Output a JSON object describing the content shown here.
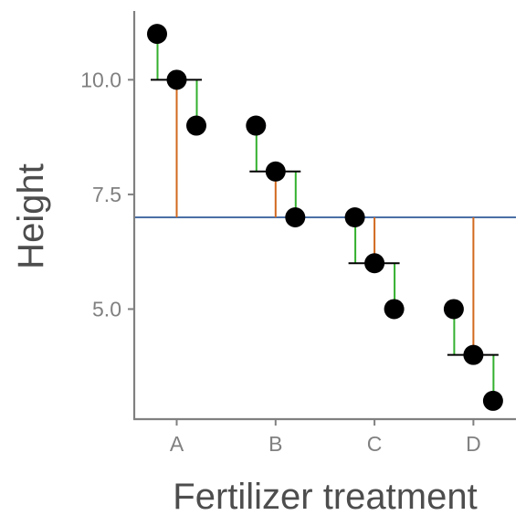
{
  "chart_data": {
    "type": "scatter",
    "xlabel": "Fertilizer treatment",
    "ylabel": "Height",
    "categories": [
      "A",
      "B",
      "C",
      "D"
    ],
    "y_ticks": [
      {
        "value": 5,
        "label": "5.0"
      },
      {
        "value": 7.5,
        "label": "7.5"
      },
      {
        "value": 10,
        "label": "10.0"
      }
    ],
    "ylim": [
      2.6,
      11.5
    ],
    "grand_mean": 7,
    "groups": [
      {
        "category": "A",
        "mean": 10,
        "values": [
          11,
          10,
          9
        ]
      },
      {
        "category": "B",
        "mean": 8,
        "values": [
          9,
          8,
          7
        ]
      },
      {
        "category": "C",
        "mean": 6,
        "values": [
          7,
          6,
          5
        ]
      },
      {
        "category": "D",
        "mean": 4,
        "values": [
          5,
          4,
          3
        ]
      }
    ],
    "grid": false,
    "colors": {
      "points": "#000000",
      "residual_segments": "#33b02e",
      "treatment_segments": "#d2691e",
      "grand_mean_line": "#4a6fa5",
      "group_mean_line": "#000000",
      "axis": "#808080"
    }
  }
}
